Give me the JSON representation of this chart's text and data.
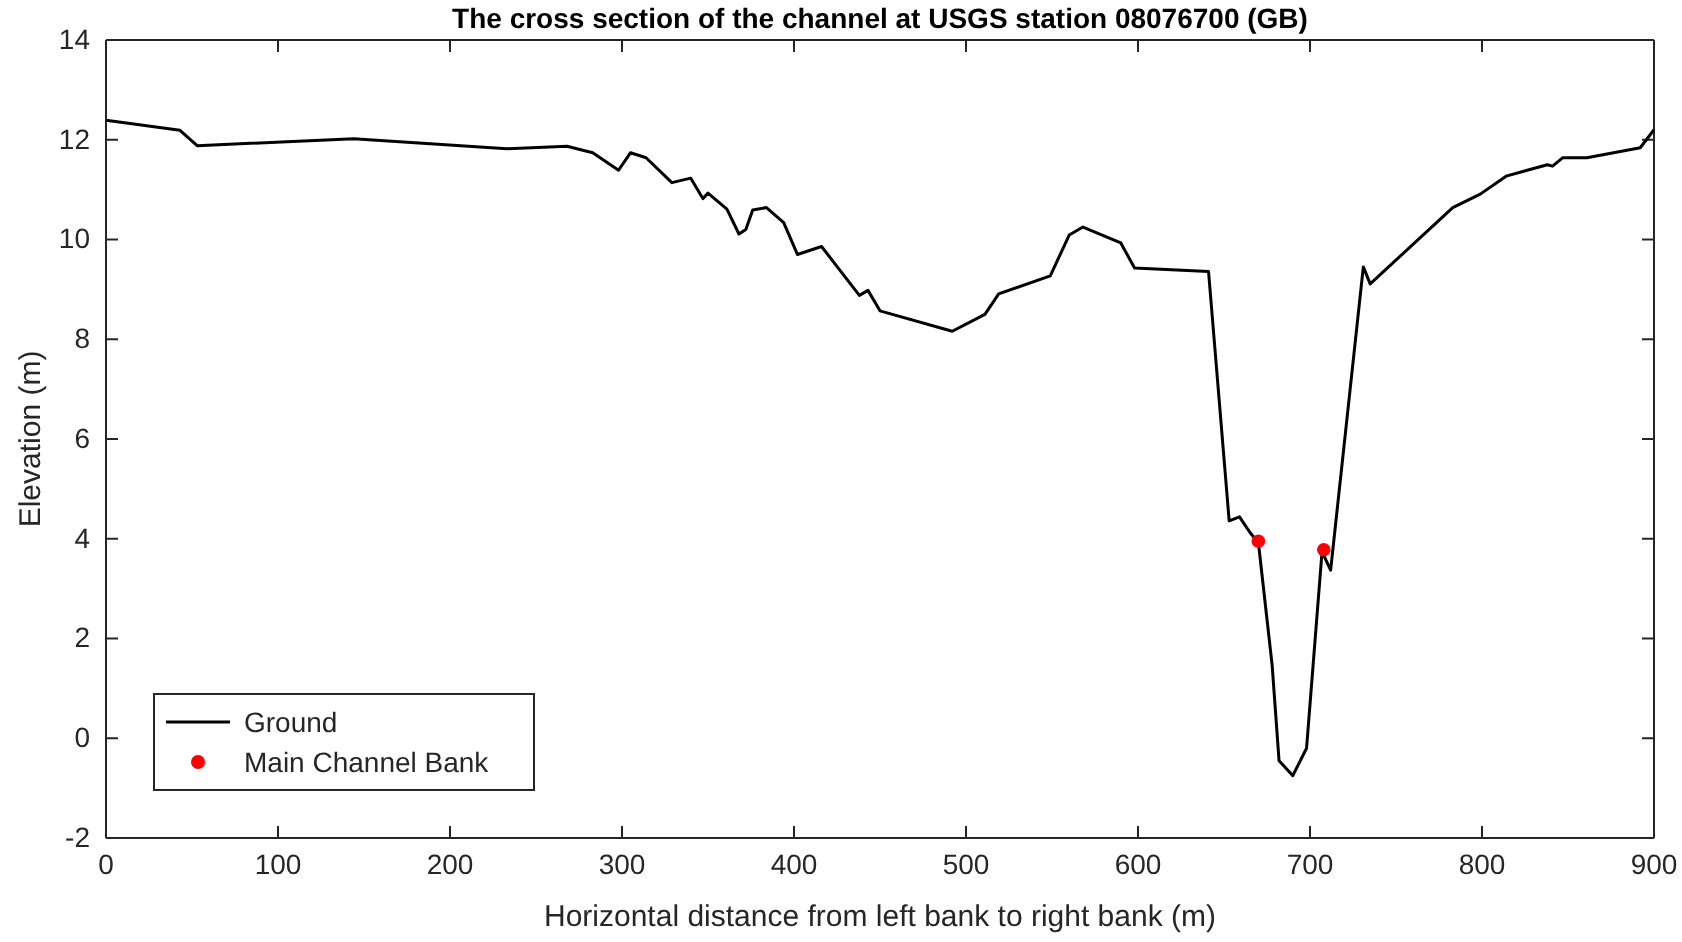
{
  "chart_data": {
    "type": "line",
    "title": "The cross section of the channel at USGS station 08076700 (GB)",
    "xlabel": "Horizontal distance from left bank to right bank (m)",
    "ylabel": "Elevation (m)",
    "xlim": [
      0,
      900
    ],
    "xticks": [
      0,
      100,
      200,
      300,
      400,
      500,
      600,
      700,
      800,
      900
    ],
    "ylim": [
      -2,
      14
    ],
    "yticks": [
      -2,
      0,
      2,
      4,
      6,
      8,
      10,
      12,
      14
    ],
    "grid": false,
    "legend": "bottom left",
    "series": [
      {
        "name": "Ground",
        "type": "line",
        "color": "#000000",
        "line_style": "solid",
        "marker": "none",
        "x": [
          0,
          43,
          53,
          144,
          233,
          268,
          283,
          298,
          305,
          314,
          329,
          340,
          347,
          350,
          361,
          368,
          372,
          376,
          384,
          394,
          402,
          416,
          438,
          443,
          450,
          492,
          511,
          519,
          549,
          560,
          568,
          590,
          598,
          641,
          653,
          659,
          665,
          670,
          678,
          682,
          690,
          698,
          707,
          712,
          731,
          735,
          783,
          799,
          814,
          838,
          841,
          847,
          861,
          892,
          900
        ],
        "values": [
          12.39,
          12.19,
          11.88,
          12.02,
          11.82,
          11.87,
          11.74,
          11.39,
          11.74,
          11.64,
          11.14,
          11.23,
          10.82,
          10.93,
          10.61,
          10.11,
          10.2,
          10.59,
          10.64,
          10.34,
          9.7,
          9.86,
          8.88,
          8.98,
          8.57,
          8.16,
          8.5,
          8.91,
          9.27,
          10.09,
          10.25,
          9.93,
          9.43,
          9.36,
          4.36,
          4.44,
          4.13,
          3.92,
          1.46,
          -0.45,
          -0.75,
          -0.2,
          3.74,
          3.37,
          9.45,
          9.11,
          10.64,
          10.91,
          11.27,
          11.5,
          11.47,
          11.64,
          11.64,
          11.84,
          12.2
        ]
      },
      {
        "name": "Main Channel Bank",
        "type": "scatter",
        "color": "#ff0000",
        "marker": "circle",
        "x": [
          670,
          708
        ],
        "values": [
          3.95,
          3.78
        ]
      }
    ]
  }
}
